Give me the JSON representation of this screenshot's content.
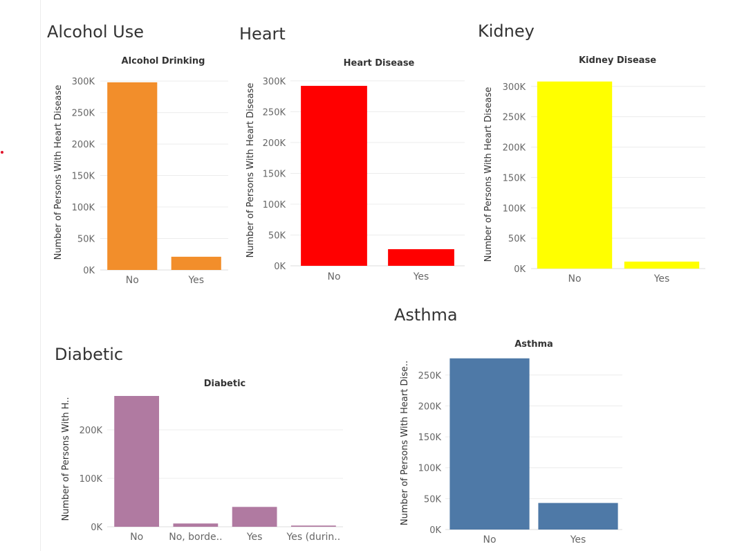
{
  "panels": {
    "alcohol": "Alcohol Use",
    "heart": "Heart",
    "kidney": "Kidney",
    "diabetic": "Diabetic",
    "asthma": "Asthma"
  },
  "chart_data": [
    {
      "id": "alcohol",
      "type": "bar",
      "title": "Alcohol Drinking",
      "xlabel": "",
      "ylabel": "Number of Persons With Heart Disease",
      "categories": [
        "No",
        "Yes"
      ],
      "values": [
        298000,
        21000
      ],
      "ylim": [
        0,
        310000
      ],
      "yticks": [
        0,
        50000,
        100000,
        150000,
        200000,
        250000,
        300000
      ],
      "yticklabels": [
        "0K",
        "50K",
        "100K",
        "150K",
        "200K",
        "250K",
        "300K"
      ],
      "color": "#f28e2b",
      "grid": true
    },
    {
      "id": "heart",
      "type": "bar",
      "title": "Heart Disease",
      "xlabel": "",
      "ylabel": "Number of Persons With Heart Disease",
      "categories": [
        "No",
        "Yes"
      ],
      "values": [
        292000,
        27000
      ],
      "ylim": [
        0,
        310000
      ],
      "yticks": [
        0,
        50000,
        100000,
        150000,
        200000,
        250000,
        300000
      ],
      "yticklabels": [
        "0K",
        "50K",
        "100K",
        "150K",
        "200K",
        "250K",
        "300K"
      ],
      "color": "#ff0000",
      "grid": true
    },
    {
      "id": "kidney",
      "type": "bar",
      "title": "Kidney Disease",
      "xlabel": "",
      "ylabel": "Number of Persons With Heart Disease",
      "categories": [
        "No",
        "Yes"
      ],
      "values": [
        308000,
        11500
      ],
      "ylim": [
        0,
        310000
      ],
      "yticks": [
        0,
        50000,
        100000,
        150000,
        200000,
        250000,
        300000
      ],
      "yticklabels": [
        "0K",
        "50K",
        "100K",
        "150K",
        "200K",
        "250K",
        "300K"
      ],
      "color": "#ffff00",
      "grid": true
    },
    {
      "id": "diabetic",
      "type": "bar",
      "title": "Diabetic",
      "xlabel": "",
      "ylabel": "Number of Persons With H..",
      "categories": [
        "No",
        "No, borde..",
        "Yes",
        "Yes (durin.."
      ],
      "values": [
        270000,
        6800,
        41000,
        2500
      ],
      "ylim": [
        0,
        280000
      ],
      "yticks": [
        0,
        100000,
        200000
      ],
      "yticklabels": [
        "0K",
        "100K",
        "200K"
      ],
      "color": "#b07aa1",
      "grid": true
    },
    {
      "id": "asthma",
      "type": "bar",
      "title": "Asthma",
      "xlabel": "",
      "ylabel": "Number of Persons With Heart Dise..",
      "categories": [
        "No",
        "Yes"
      ],
      "values": [
        277000,
        43000
      ],
      "ylim": [
        0,
        280000
      ],
      "yticks": [
        0,
        50000,
        100000,
        150000,
        200000,
        250000
      ],
      "yticklabels": [
        "0K",
        "50K",
        "100K",
        "150K",
        "200K",
        "250K"
      ],
      "color": "#4e79a7",
      "grid": true
    }
  ]
}
